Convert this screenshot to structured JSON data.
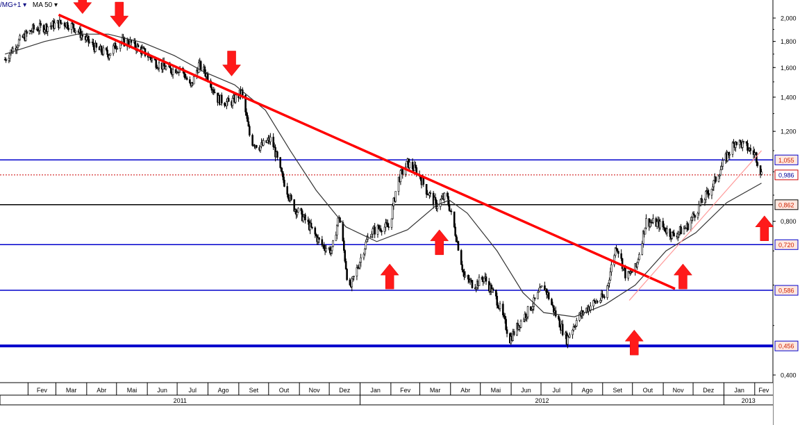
{
  "header": {
    "symbol_label": "/MG+1 ▾",
    "indicator_label": "MA 50 ▾"
  },
  "chart_data": {
    "type": "candlestick",
    "y_ticks": [
      "2,000",
      "1,800",
      "1,600",
      "1,400",
      "1,200",
      "0,800",
      "0,400"
    ],
    "month_labels": [
      "Fev",
      "Mar",
      "Abr",
      "Mai",
      "Jun",
      "Jul",
      "Ago",
      "Set",
      "Out",
      "Nov",
      "Dez",
      "Jan",
      "Fev",
      "Mar",
      "Abr",
      "Mai",
      "Jun",
      "Jul",
      "Ago",
      "Set",
      "Out",
      "Nov",
      "Dez",
      "Jan",
      "Fev"
    ],
    "year_labels": [
      "2011",
      "2012",
      "2013"
    ],
    "horizontal_levels": [
      {
        "label": "1,055",
        "value": 1.055,
        "color": "#0000cc",
        "style": "solid",
        "box": "#ffe8e0",
        "text_color": "#cc2200"
      },
      {
        "label": "0,986",
        "value": 0.986,
        "color": "#cc0000",
        "style": "dotted",
        "box": "#ffffff",
        "text_color": "#000099"
      },
      {
        "label": "0,862",
        "value": 0.862,
        "color": "#000000",
        "style": "solid",
        "box": "#ffe8e0",
        "text_color": "#cc2200"
      },
      {
        "label": "0,720",
        "value": 0.72,
        "color": "#0000cc",
        "style": "solid",
        "box": "#ffe8e0",
        "text_color": "#cc2200"
      },
      {
        "label": "0,586",
        "value": 0.586,
        "color": "#0000cc",
        "style": "solid",
        "box": "#ffe8e0",
        "text_color": "#cc2200"
      },
      {
        "label": "0,456",
        "value": 0.456,
        "color": "#0000cc",
        "style": "thick",
        "box": "#ffe8e0",
        "text_color": "#cc2200"
      }
    ],
    "trendline": {
      "from": {
        "date": "2011-03-01",
        "value": 2.03
      },
      "to": {
        "date": "2012-11-10",
        "value": 0.59
      },
      "color": "#ff0000"
    },
    "up_channel": {
      "from": {
        "date": "2012-09-25",
        "value": 0.56
      },
      "to": {
        "date": "2013-02-05",
        "value": 1.1
      },
      "color": "#ff9999"
    },
    "price_points": [
      [
        "2011-01-06",
        1.66
      ],
      [
        "2011-01-20",
        1.8
      ],
      [
        "2011-02-03",
        1.9
      ],
      [
        "2011-02-20",
        1.93
      ],
      [
        "2011-03-05",
        1.96
      ],
      [
        "2011-03-15",
        1.93
      ],
      [
        "2011-03-28",
        1.82
      ],
      [
        "2011-04-08",
        1.74
      ],
      [
        "2011-04-20",
        1.7
      ],
      [
        "2011-05-01",
        1.8
      ],
      [
        "2011-05-12",
        1.79
      ],
      [
        "2011-05-25",
        1.72
      ],
      [
        "2011-06-08",
        1.63
      ],
      [
        "2011-06-22",
        1.58
      ],
      [
        "2011-07-02",
        1.6
      ],
      [
        "2011-07-12",
        1.46
      ],
      [
        "2011-07-20",
        1.62
      ],
      [
        "2011-07-28",
        1.55
      ],
      [
        "2011-08-08",
        1.39
      ],
      [
        "2011-08-20",
        1.36
      ],
      [
        "2011-09-01",
        1.43
      ],
      [
        "2011-09-10",
        1.15
      ],
      [
        "2011-09-20",
        1.12
      ],
      [
        "2011-10-01",
        1.16
      ],
      [
        "2011-10-10",
        1.0
      ],
      [
        "2011-10-22",
        0.86
      ],
      [
        "2011-11-05",
        0.8
      ],
      [
        "2011-11-20",
        0.72
      ],
      [
        "2011-12-01",
        0.7
      ],
      [
        "2011-12-08",
        0.82
      ],
      [
        "2011-12-18",
        0.58
      ],
      [
        "2011-12-28",
        0.66
      ],
      [
        "2012-01-08",
        0.76
      ],
      [
        "2012-01-20",
        0.78
      ],
      [
        "2012-01-28",
        0.78
      ],
      [
        "2012-02-05",
        0.96
      ],
      [
        "2012-02-15",
        1.04
      ],
      [
        "2012-02-25",
        1.0
      ],
      [
        "2012-03-05",
        0.92
      ],
      [
        "2012-03-15",
        0.86
      ],
      [
        "2012-03-25",
        0.9
      ],
      [
        "2012-04-05",
        0.73
      ],
      [
        "2012-04-12",
        0.62
      ],
      [
        "2012-04-22",
        0.6
      ],
      [
        "2012-05-02",
        0.62
      ],
      [
        "2012-05-15",
        0.56
      ],
      [
        "2012-05-28",
        0.47
      ],
      [
        "2012-06-08",
        0.51
      ],
      [
        "2012-06-20",
        0.55
      ],
      [
        "2012-07-01",
        0.6
      ],
      [
        "2012-07-12",
        0.53
      ],
      [
        "2012-07-24",
        0.47
      ],
      [
        "2012-08-05",
        0.52
      ],
      [
        "2012-08-18",
        0.55
      ],
      [
        "2012-09-01",
        0.57
      ],
      [
        "2012-09-12",
        0.72
      ],
      [
        "2012-09-22",
        0.62
      ],
      [
        "2012-10-02",
        0.65
      ],
      [
        "2012-10-12",
        0.8
      ],
      [
        "2012-10-25",
        0.79
      ],
      [
        "2012-11-08",
        0.75
      ],
      [
        "2012-11-22",
        0.78
      ],
      [
        "2012-12-05",
        0.86
      ],
      [
        "2012-12-18",
        0.94
      ],
      [
        "2013-01-01",
        1.07
      ],
      [
        "2013-01-10",
        1.15
      ],
      [
        "2013-01-20",
        1.12
      ],
      [
        "2013-01-30",
        1.08
      ],
      [
        "2013-02-05",
        0.99
      ]
    ],
    "ma_points": [
      [
        "2011-01-06",
        1.7
      ],
      [
        "2011-02-15",
        1.8
      ],
      [
        "2011-03-20",
        1.86
      ],
      [
        "2011-04-20",
        1.86
      ],
      [
        "2011-05-25",
        1.79
      ],
      [
        "2011-06-25",
        1.69
      ],
      [
        "2011-07-25",
        1.57
      ],
      [
        "2011-08-25",
        1.48
      ],
      [
        "2011-09-25",
        1.32
      ],
      [
        "2011-10-20",
        1.1
      ],
      [
        "2011-11-15",
        0.92
      ],
      [
        "2011-12-15",
        0.78
      ],
      [
        "2012-01-15",
        0.73
      ],
      [
        "2012-02-15",
        0.77
      ],
      [
        "2012-03-15",
        0.86
      ],
      [
        "2012-03-28",
        0.88
      ],
      [
        "2012-04-15",
        0.83
      ],
      [
        "2012-05-15",
        0.7
      ],
      [
        "2012-06-10",
        0.58
      ],
      [
        "2012-07-01",
        0.53
      ],
      [
        "2012-08-01",
        0.52
      ],
      [
        "2012-09-01",
        0.55
      ],
      [
        "2012-10-01",
        0.6
      ],
      [
        "2012-11-01",
        0.7
      ],
      [
        "2012-12-01",
        0.76
      ],
      [
        "2013-01-01",
        0.87
      ],
      [
        "2013-02-05",
        0.95
      ]
    ],
    "down_arrows": [
      {
        "date": "2011-03-25",
        "value": 2.04
      },
      {
        "date": "2011-05-01",
        "value": 1.92
      },
      {
        "date": "2011-08-22",
        "value": 1.54
      }
    ],
    "up_arrows": [
      {
        "date": "2012-01-28",
        "value": 0.66
      },
      {
        "date": "2012-03-18",
        "value": 0.77
      },
      {
        "date": "2012-09-30",
        "value": 0.49
      },
      {
        "date": "2012-11-18",
        "value": 0.66
      },
      {
        "date": "2013-02-08",
        "value": 0.82
      }
    ]
  }
}
